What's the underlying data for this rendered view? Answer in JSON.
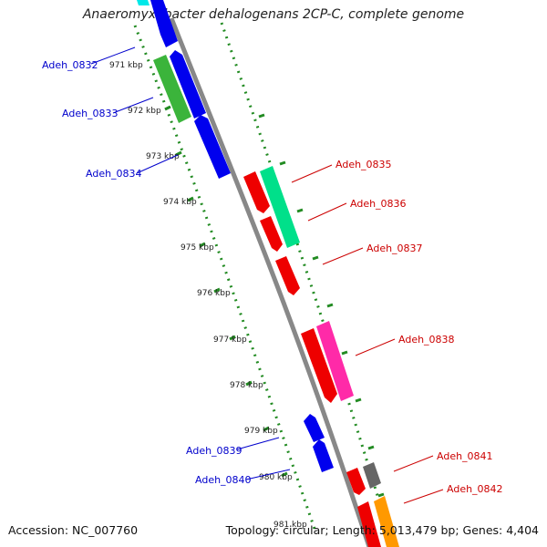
{
  "title": "Anaeromyxobacter dehalogenans 2CP-C, complete genome",
  "footer": {
    "accession": "Accession: NC_007760",
    "summary": "Topology: circular; Length: 5,013,479 bp; Genes: 4,404"
  },
  "scale_labels": [
    "971 kbp",
    "972 kbp",
    "973 kbp",
    "974 kbp",
    "975 kbp",
    "976 kbp",
    "977 kbp",
    "978 kbp",
    "979 kbp",
    "980 kbp",
    "981 kbp"
  ],
  "genes": [
    {
      "name": "Adeh_0832",
      "strand": "reverse",
      "color": "#3bb43b"
    },
    {
      "name": "Adeh_0833",
      "strand": "reverse",
      "color": "#0000ee"
    },
    {
      "name": "Adeh_0834",
      "strand": "reverse",
      "color": "#0000ee"
    },
    {
      "name": "Adeh_0835",
      "strand": "forward",
      "color": "#ee0000"
    },
    {
      "name": "Adeh_0836",
      "strand": "forward",
      "color": "#ee0000"
    },
    {
      "name": "Adeh_0837",
      "strand": "forward",
      "color": "#ee0000"
    },
    {
      "name": "Adeh_0838",
      "strand": "forward",
      "color": "#ee0000"
    },
    {
      "name": "Adeh_0839",
      "strand": "reverse",
      "color": "#0000ee"
    },
    {
      "name": "Adeh_0840",
      "strand": "reverse",
      "color": "#0000ee"
    },
    {
      "name": "Adeh_0841",
      "strand": "forward",
      "color": "#ee0000"
    },
    {
      "name": "Adeh_0842",
      "strand": "forward",
      "color": "#ee0000"
    }
  ],
  "colors": {
    "forward_label": "#cc0000",
    "reverse_label": "#0000cc",
    "backbone": "#888888",
    "ticks": "#228b22",
    "cds_other_green": "#00e08a",
    "cds_other_pink": "#ff2aa8",
    "cds_other_gray": "#666666",
    "cds_other_orange": "#ff9900",
    "cds_cyan": "#00e8e8"
  }
}
